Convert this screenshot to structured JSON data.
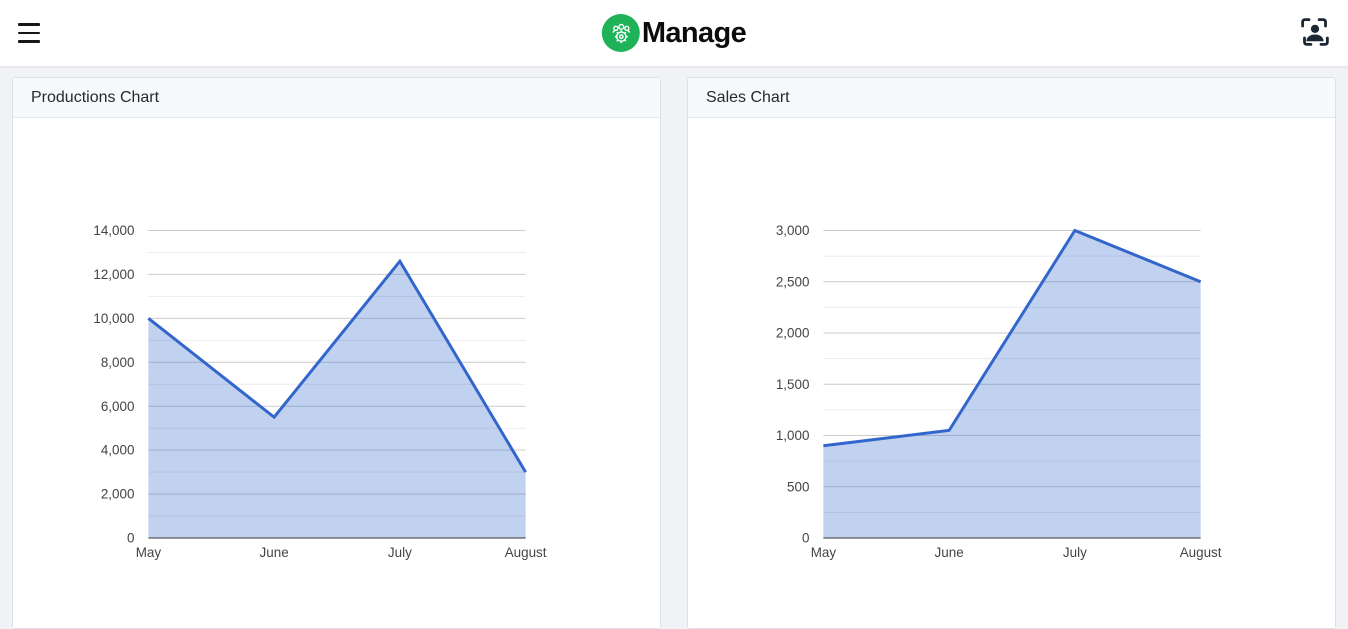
{
  "header": {
    "brand": "Manage",
    "brand_color": "#1fb259",
    "icons": [
      "hamburger-menu",
      "team-gear-logo",
      "person-bounding-box"
    ]
  },
  "cards": [
    {
      "title": "Productions Chart"
    },
    {
      "title": "Sales Chart"
    }
  ],
  "chart_data": [
    {
      "type": "area",
      "title": "Productions Chart",
      "categories": [
        "May",
        "June",
        "July",
        "August"
      ],
      "values": [
        10000,
        5500,
        12600,
        3000
      ],
      "xlabel": "",
      "ylabel": "",
      "ylim": [
        0,
        14000
      ],
      "y_major_ticks": [
        0,
        2000,
        4000,
        6000,
        8000,
        10000,
        12000,
        14000
      ],
      "y_tick_labels": [
        "0",
        "2,000",
        "4,000",
        "6,000",
        "8,000",
        "10,000",
        "12,000",
        "14,000"
      ],
      "y_minor_step": 1000,
      "grid": true,
      "legend": "none",
      "line_color": "#3366cc",
      "area_fill": "rgba(51,102,204,0.3)",
      "major_grid_color": "#cccccc",
      "minor_grid_color": "#ebebeb",
      "baseline_color": "#333333"
    },
    {
      "type": "area",
      "title": "Sales Chart",
      "categories": [
        "May",
        "June",
        "July",
        "August"
      ],
      "values": [
        900,
        1050,
        3000,
        2500
      ],
      "xlabel": "",
      "ylabel": "",
      "ylim": [
        0,
        3000
      ],
      "y_major_ticks": [
        0,
        500,
        1000,
        1500,
        2000,
        2500,
        3000
      ],
      "y_tick_labels": [
        "0",
        "500",
        "1,000",
        "1,500",
        "2,000",
        "2,500",
        "3,000"
      ],
      "y_minor_step": 250,
      "grid": true,
      "legend": "none",
      "line_color": "#3366cc",
      "area_fill": "rgba(51,102,204,0.3)",
      "major_grid_color": "#cccccc",
      "minor_grid_color": "#ebebeb",
      "baseline_color": "#333333"
    }
  ]
}
